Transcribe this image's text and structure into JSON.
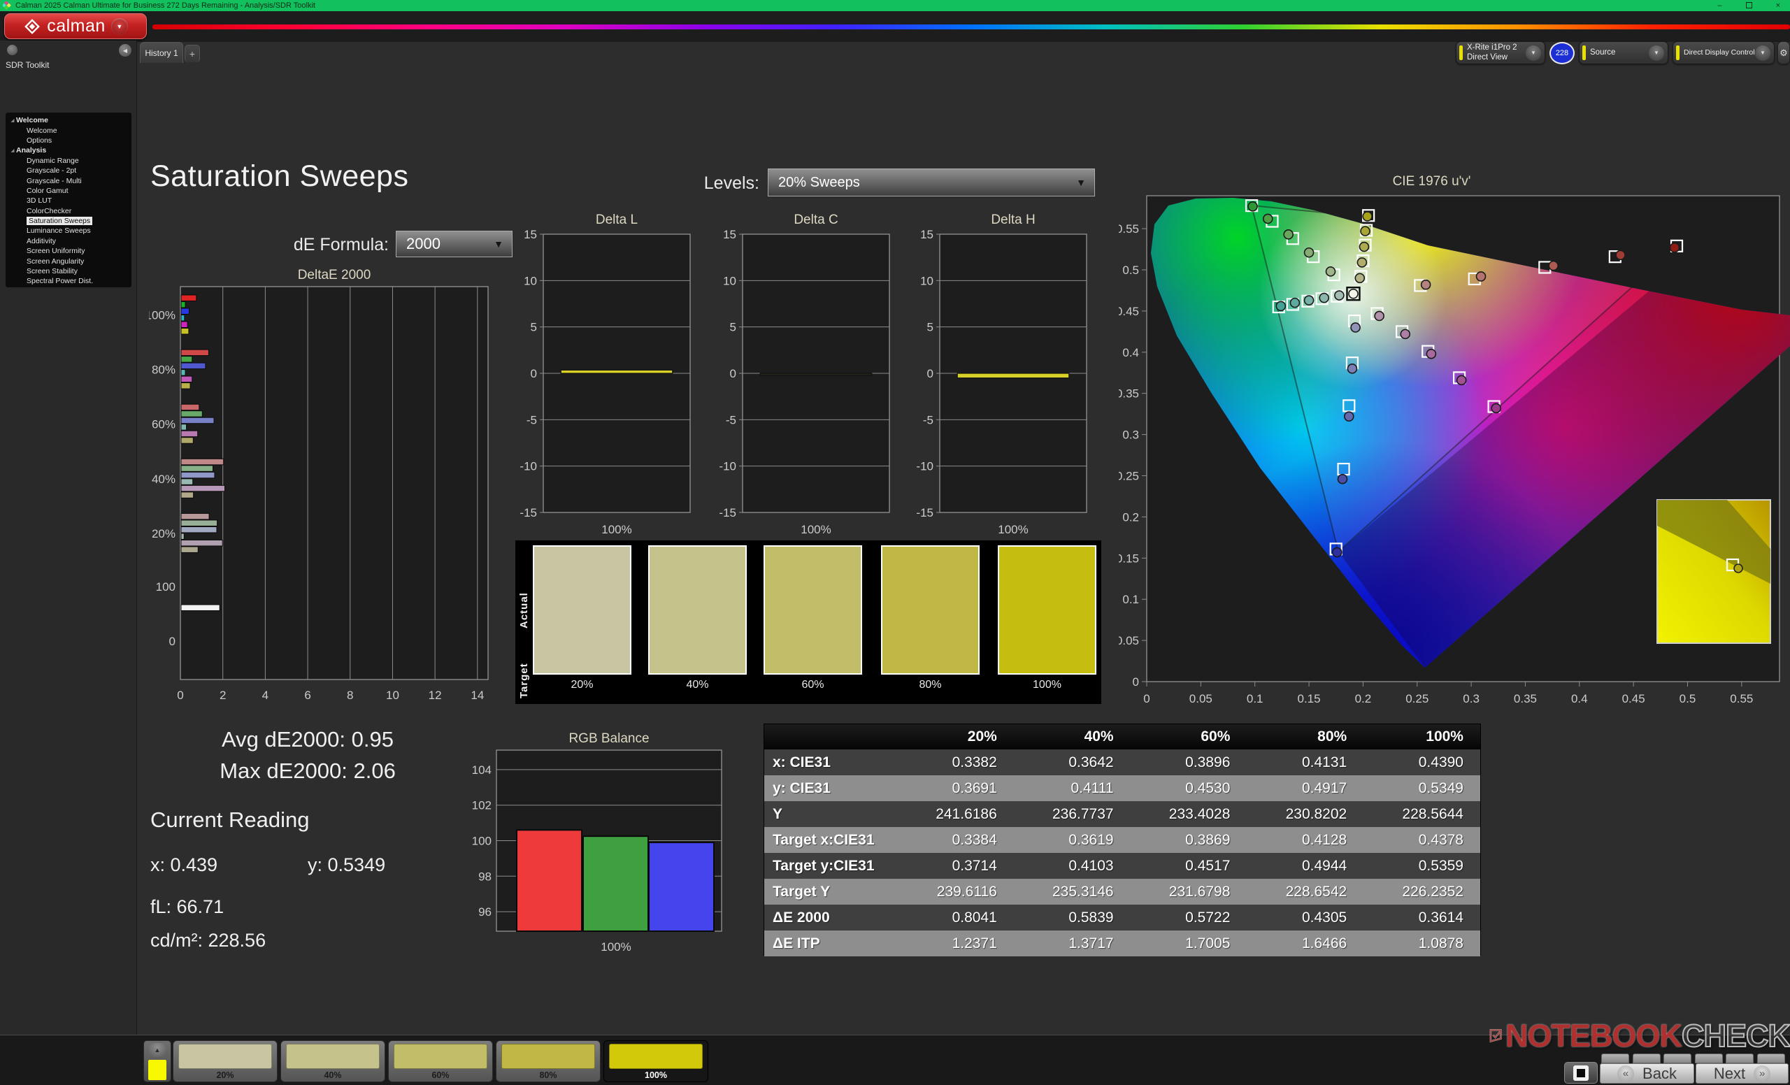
{
  "titlebar": {
    "title": "Calman 2025 Calman Ultimate for Business 272 Days Remaining  - Analysis/SDR Toolkit",
    "minimize": "–",
    "restore": "❐",
    "close": "×"
  },
  "logo": {
    "word": "calman",
    "arrow": "▼"
  },
  "tabs": {
    "history": "History 1",
    "add": "+",
    "back_arrow": "◀"
  },
  "top_controls": {
    "meter_line1": "X-Rite i1Pro 2",
    "meter_line2": "Direct View",
    "badge": "228",
    "source": "Source",
    "display_control": "Direct Display Control",
    "gear": "⚙",
    "collapse": "◀",
    "drop_arrow": "▼"
  },
  "sidebar": {
    "title": "SDR Toolkit",
    "tree": [
      {
        "label": "Welcome",
        "lvl": 0
      },
      {
        "label": "Welcome",
        "lvl": 1
      },
      {
        "label": "Options",
        "lvl": 1
      },
      {
        "label": "Analysis",
        "lvl": 0
      },
      {
        "label": "Dynamic Range",
        "lvl": 1
      },
      {
        "label": "Grayscale - 2pt",
        "lvl": 1
      },
      {
        "label": "Grayscale - Multi",
        "lvl": 1
      },
      {
        "label": "Color Gamut",
        "lvl": 1
      },
      {
        "label": "3D LUT",
        "lvl": 1
      },
      {
        "label": "ColorChecker",
        "lvl": 1
      },
      {
        "label": "Saturation Sweeps",
        "lvl": 1,
        "selected": true
      },
      {
        "label": "Luminance Sweeps",
        "lvl": 1
      },
      {
        "label": "Additivity",
        "lvl": 1
      },
      {
        "label": "Screen Uniformity",
        "lvl": 1
      },
      {
        "label": "Screen Angularity",
        "lvl": 1
      },
      {
        "label": "Screen Stability",
        "lvl": 1
      },
      {
        "label": "Spectral Power Dist.",
        "lvl": 1
      }
    ]
  },
  "page": {
    "title": "Saturation Sweeps",
    "de_formula_label": "dE Formula:",
    "de_formula_value": "2000",
    "levels_label": "Levels:",
    "levels_value": "20% Sweeps"
  },
  "stats": {
    "avg": "Avg dE2000: 0.95",
    "max": "Max dE2000: 2.06",
    "current_reading": "Current Reading",
    "x": "x: 0.439",
    "y": "y: 0.5349",
    "fl": "fL: 66.71",
    "cdm2": "cd/m²: 228.56"
  },
  "swatch_panel": {
    "actual_label": "Actual",
    "target_label": "Target",
    "items": [
      {
        "label": "20%",
        "color": "#c7c5a2"
      },
      {
        "label": "40%",
        "color": "#c6c28c"
      },
      {
        "label": "60%",
        "color": "#c2bd68"
      },
      {
        "label": "80%",
        "color": "#bfb844"
      },
      {
        "label": "100%",
        "color": "#c6bd11"
      }
    ]
  },
  "table": {
    "header": [
      "20%",
      "40%",
      "60%",
      "80%",
      "100%"
    ],
    "rows": [
      {
        "label": "x: CIE31",
        "values": [
          "0.3382",
          "0.3642",
          "0.3896",
          "0.4131",
          "0.4390"
        ]
      },
      {
        "label": "y: CIE31",
        "values": [
          "0.3691",
          "0.4111",
          "0.4530",
          "0.4917",
          "0.5349"
        ]
      },
      {
        "label": "Y",
        "values": [
          "241.6186",
          "236.7737",
          "233.4028",
          "230.8202",
          "228.5644"
        ]
      },
      {
        "label": "Target x:CIE31",
        "values": [
          "0.3384",
          "0.3619",
          "0.3869",
          "0.4128",
          "0.4378"
        ]
      },
      {
        "label": "Target y:CIE31",
        "values": [
          "0.3714",
          "0.4103",
          "0.4517",
          "0.4944",
          "0.5359"
        ]
      },
      {
        "label": "Target Y",
        "values": [
          "239.6116",
          "235.3146",
          "231.6798",
          "228.6542",
          "226.2352"
        ]
      },
      {
        "label": "ΔE 2000",
        "values": [
          "0.8041",
          "0.5839",
          "0.5722",
          "0.4305",
          "0.3614"
        ]
      },
      {
        "label": "ΔE ITP",
        "values": [
          "1.2371",
          "1.3717",
          "1.7005",
          "1.6466",
          "1.0878"
        ]
      }
    ]
  },
  "thumbnails": [
    {
      "label": "20%",
      "color": "#c7c5a2",
      "selected": false
    },
    {
      "label": "40%",
      "color": "#c6c28c",
      "selected": false
    },
    {
      "label": "60%",
      "color": "#c2bd68",
      "selected": false
    },
    {
      "label": "80%",
      "color": "#bfb844",
      "selected": false
    },
    {
      "label": "100%",
      "color": "#d2c90a",
      "selected": true
    }
  ],
  "footer": {
    "up_arrow": "▲",
    "back": "Back",
    "next": "Next",
    "back_glyph": "«",
    "next_glyph": "»"
  },
  "watermark": {
    "notebook": "NOTEBOOK",
    "check": "CHECK"
  },
  "chart_data": [
    {
      "id": "deltae2000",
      "type": "bar",
      "orientation": "horizontal",
      "title": "DeltaE 2000",
      "xlim": [
        0,
        14.5
      ],
      "xticks": [
        0,
        2,
        4,
        6,
        8,
        10,
        12,
        14
      ],
      "grid": true,
      "legend": false,
      "ylabels": [
        {
          "label": "100%",
          "pos": 0.072
        },
        {
          "label": "80%",
          "pos": 0.211
        },
        {
          "label": "60%",
          "pos": 0.35
        },
        {
          "label": "40%",
          "pos": 0.489
        },
        {
          "label": "20%",
          "pos": 0.628
        },
        {
          "label": "100",
          "pos": 0.763
        },
        {
          "label": "0",
          "pos": 0.902
        }
      ],
      "groups": [
        {
          "label": "100%",
          "pos": 0.072,
          "values": [
            0.72,
            0.2,
            0.38,
            0.16,
            0.3,
            0.36
          ],
          "colors": [
            "#e02424",
            "#18b024",
            "#2838e0",
            "#28b8c8",
            "#d024c0",
            "#c8c024"
          ]
        },
        {
          "label": "80%",
          "pos": 0.211,
          "values": [
            1.3,
            0.52,
            1.15,
            0.2,
            0.52,
            0.43
          ],
          "colors": [
            "#d04848",
            "#48a848",
            "#5058d0",
            "#58b8b8",
            "#c058b8",
            "#b8b048"
          ]
        },
        {
          "label": "60%",
          "pos": 0.35,
          "values": [
            0.85,
            1.0,
            1.55,
            0.25,
            0.78,
            0.57
          ],
          "colors": [
            "#c86868",
            "#68a868",
            "#7880c8",
            "#80b8b0",
            "#b878b0",
            "#b0a868"
          ]
        },
        {
          "label": "40%",
          "pos": 0.489,
          "values": [
            2.0,
            1.5,
            1.58,
            0.55,
            2.06,
            0.58
          ],
          "colors": [
            "#c08888",
            "#88b088",
            "#9098c8",
            "#98b8b0",
            "#b898b8",
            "#b0a888"
          ]
        },
        {
          "label": "20%",
          "pos": 0.628,
          "values": [
            1.32,
            1.7,
            1.68,
            0.14,
            1.95,
            0.8
          ],
          "colors": [
            "#b89898",
            "#98b098",
            "#a0a8c0",
            "#a8b8b0",
            "#b0a0b0",
            "#aca890"
          ]
        },
        {
          "label": "White",
          "pos": 0.818,
          "values": [
            1.82
          ],
          "colors": [
            "#f2f2f2"
          ]
        }
      ]
    },
    {
      "id": "delta-l",
      "type": "bar",
      "title": "Delta L",
      "ylim": [
        -15,
        15
      ],
      "yticks": [
        15,
        10,
        5,
        0,
        -5,
        -10,
        -15
      ],
      "xlabel": "100%",
      "categories": [
        "100%"
      ],
      "values": [
        0.35
      ],
      "color": "#d8d028"
    },
    {
      "id": "delta-c",
      "type": "bar",
      "title": "Delta C",
      "ylim": [
        -15,
        15
      ],
      "yticks": [
        15,
        10,
        5,
        0,
        -5,
        -10,
        -15
      ],
      "xlabel": "100%",
      "categories": [
        "100%"
      ],
      "values": [
        -0.1
      ],
      "color": "#26261a"
    },
    {
      "id": "delta-h",
      "type": "bar",
      "title": "Delta H",
      "ylim": [
        -15,
        15
      ],
      "yticks": [
        15,
        10,
        5,
        0,
        -5,
        -10,
        -15
      ],
      "xlabel": "100%",
      "categories": [
        "100%"
      ],
      "values": [
        -0.5
      ],
      "color": "#d8d028"
    },
    {
      "id": "rgb-balance",
      "type": "bar",
      "title": "RGB Balance",
      "ylim": [
        94.9,
        105.1
      ],
      "yticks": [
        104,
        102,
        100,
        98,
        96
      ],
      "xlabel": "100%",
      "categories": [
        "100%"
      ],
      "series": [
        {
          "name": "Red",
          "value": 100.6,
          "color": "#ee3a3a"
        },
        {
          "name": "Green",
          "value": 100.25,
          "color": "#3fa03f"
        },
        {
          "name": "Blue",
          "value": 99.9,
          "color": "#4545ee"
        }
      ]
    },
    {
      "id": "cie1976",
      "type": "scatter",
      "title": "CIE 1976 u'v'",
      "xlim": [
        0,
        0.585
      ],
      "ylim": [
        0,
        0.59
      ],
      "xticks": [
        0,
        0.05,
        0.1,
        0.15,
        0.2,
        0.25,
        0.3,
        0.35,
        0.4,
        0.45,
        0.5,
        0.55
      ],
      "yticks": [
        0,
        0.05,
        0.1,
        0.15,
        0.2,
        0.25,
        0.3,
        0.35,
        0.4,
        0.45,
        0.5,
        0.55
      ],
      "white_point": [
        0.191,
        0.471
      ],
      "sweeps": [
        {
          "name": "red",
          "targets": [
            [
              0.253,
              0.481
            ],
            [
              0.303,
              0.489
            ],
            [
              0.368,
              0.503
            ],
            [
              0.433,
              0.516
            ],
            [
              0.49,
              0.529
            ]
          ],
          "measured": [
            [
              0.258,
              0.482
            ],
            [
              0.309,
              0.492
            ],
            [
              0.376,
              0.505
            ],
            [
              0.438,
              0.518
            ],
            [
              0.488,
              0.527
            ]
          ],
          "colors": [
            "#b5827f",
            "#b4736e",
            "#ad5a52",
            "#a03c34",
            "#8e1a14"
          ]
        },
        {
          "name": "green",
          "targets": [
            [
              0.173,
              0.494
            ],
            [
              0.154,
              0.516
            ],
            [
              0.135,
              0.538
            ],
            [
              0.116,
              0.559
            ],
            [
              0.097,
              0.578
            ]
          ],
          "measured": [
            [
              0.17,
              0.498
            ],
            [
              0.15,
              0.521
            ],
            [
              0.131,
              0.543
            ],
            [
              0.112,
              0.562
            ],
            [
              0.098,
              0.577
            ]
          ],
          "colors": [
            "#9fb489",
            "#86ac73",
            "#6aa55c",
            "#4d9e45",
            "#2e9733"
          ]
        },
        {
          "name": "blue",
          "targets": [
            [
              0.192,
              0.438
            ],
            [
              0.19,
              0.387
            ],
            [
              0.187,
              0.335
            ],
            [
              0.182,
              0.258
            ],
            [
              0.175,
              0.161
            ]
          ],
          "measured": [
            [
              0.193,
              0.43
            ],
            [
              0.19,
              0.38
            ],
            [
              0.187,
              0.322
            ],
            [
              0.181,
              0.246
            ],
            [
              0.176,
              0.157
            ]
          ],
          "colors": [
            "#8f93b9",
            "#7b80b4",
            "#6468ae",
            "#4a4ea6",
            "#2f2f9e"
          ]
        },
        {
          "name": "cyan",
          "targets": [
            [
              0.176,
              0.468
            ],
            [
              0.162,
              0.465
            ],
            [
              0.149,
              0.462
            ],
            [
              0.135,
              0.458
            ],
            [
              0.122,
              0.455
            ]
          ],
          "measured": [
            [
              0.178,
              0.469
            ],
            [
              0.164,
              0.466
            ],
            [
              0.15,
              0.463
            ],
            [
              0.137,
              0.46
            ],
            [
              0.124,
              0.456
            ]
          ],
          "colors": [
            "#a3bcb4",
            "#8db6ad",
            "#76b0a6",
            "#5ea99e",
            "#45a297"
          ]
        },
        {
          "name": "magenta",
          "targets": [
            [
              0.213,
              0.447
            ],
            [
              0.236,
              0.425
            ],
            [
              0.26,
              0.401
            ],
            [
              0.289,
              0.369
            ],
            [
              0.321,
              0.334
            ]
          ],
          "measured": [
            [
              0.215,
              0.444
            ],
            [
              0.239,
              0.422
            ],
            [
              0.263,
              0.398
            ],
            [
              0.291,
              0.366
            ],
            [
              0.323,
              0.332
            ]
          ],
          "colors": [
            "#b292ab",
            "#ad7fa4",
            "#a86a9c",
            "#a05292",
            "#983a88"
          ]
        },
        {
          "name": "yellow",
          "targets": [
            [
              0.198,
              0.492
            ],
            [
              0.2,
              0.511
            ],
            [
              0.202,
              0.53
            ],
            [
              0.203,
              0.548
            ],
            [
              0.205,
              0.566
            ]
          ],
          "measured": [
            [
              0.197,
              0.49
            ],
            [
              0.199,
              0.509
            ],
            [
              0.201,
              0.528
            ],
            [
              0.202,
              0.547
            ],
            [
              0.204,
              0.565
            ]
          ],
          "colors": [
            "#b3b385",
            "#b0ae6a",
            "#adaa50",
            "#aaa636",
            "#a7a11b"
          ]
        }
      ]
    }
  ]
}
